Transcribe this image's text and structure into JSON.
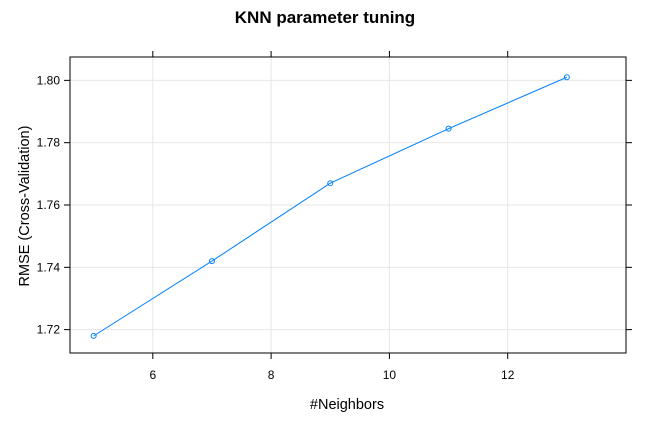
{
  "chart_data": {
    "type": "line",
    "title": "KNN parameter tuning",
    "xlabel": "#Neighbors",
    "ylabel": "RMSE (Cross-Validation)",
    "x": [
      5,
      7,
      9,
      11,
      13
    ],
    "series": [
      {
        "values": [
          1.718,
          1.742,
          1.767,
          1.7845,
          1.801
        ]
      }
    ],
    "xlim": [
      4.6,
      14.0
    ],
    "ylim": [
      1.7125,
      1.8075
    ],
    "xticks": [
      6,
      8,
      10,
      12
    ],
    "xtick_labels": [
      "6",
      "8",
      "10",
      "12"
    ],
    "yticks": [
      1.72,
      1.74,
      1.76,
      1.78,
      1.8
    ],
    "ytick_labels": [
      "1.72",
      "1.74",
      "1.76",
      "1.78",
      "1.80"
    ],
    "grid": true,
    "line_color": "#0080ff",
    "grid_color": "#e6e6e6"
  }
}
